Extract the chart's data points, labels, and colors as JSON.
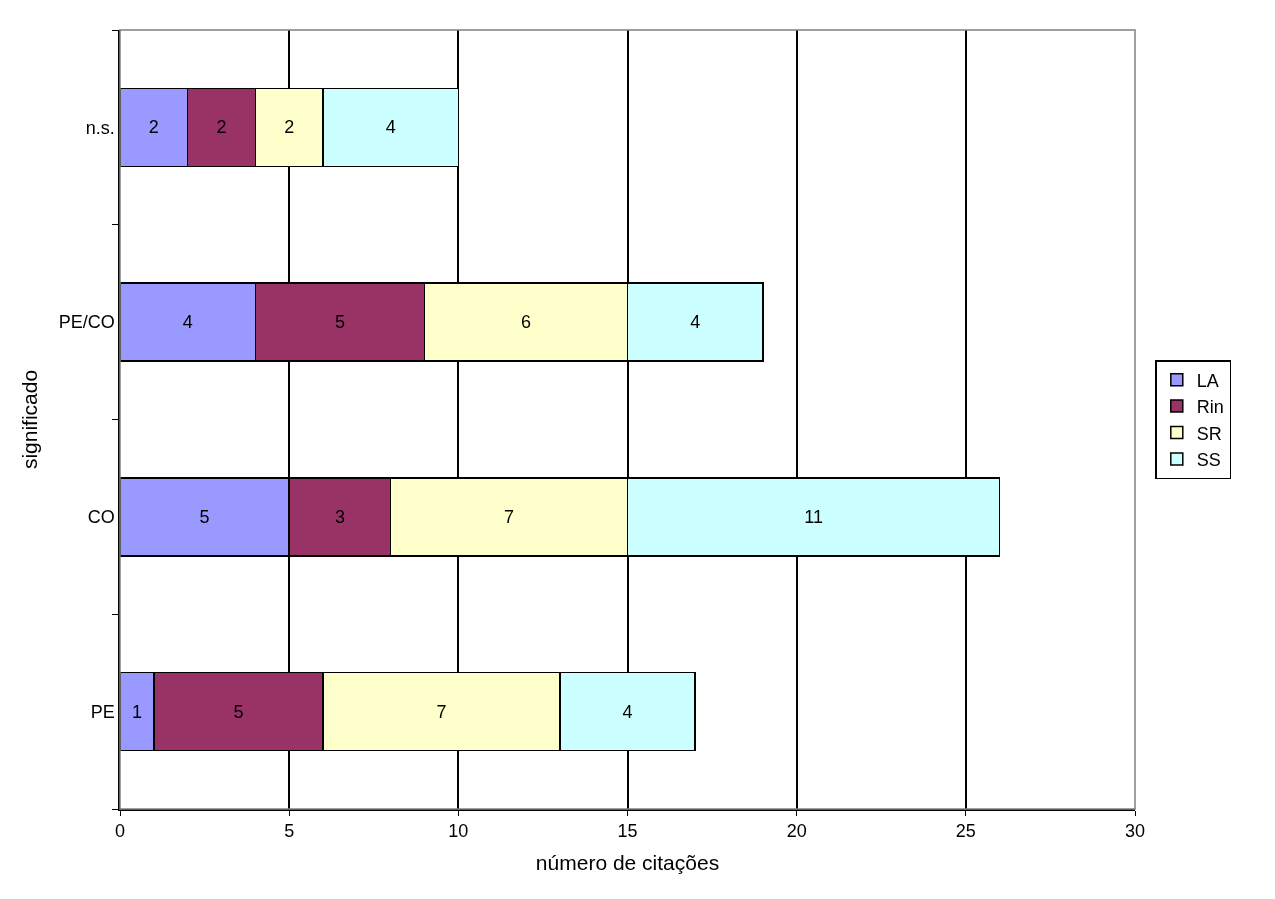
{
  "chart_data": {
    "type": "bar",
    "orientation": "horizontal",
    "stacked": true,
    "xlabel": "número de citações",
    "ylabel": "significado",
    "categories": [
      "n.s.",
      "PE/CO",
      "CO",
      "PE"
    ],
    "series": [
      {
        "name": "LA",
        "color": "#9999ff",
        "values": [
          2,
          4,
          5,
          1
        ]
      },
      {
        "name": "Rin",
        "color": "#993366",
        "values": [
          2,
          5,
          3,
          5
        ]
      },
      {
        "name": "SR",
        "color": "#ffffcc",
        "values": [
          2,
          6,
          7,
          7
        ]
      },
      {
        "name": "SS",
        "color": "#ccffff",
        "values": [
          4,
          4,
          11,
          4
        ]
      }
    ],
    "xlim": [
      0,
      30
    ],
    "xticks": [
      0,
      5,
      10,
      15,
      20,
      25,
      30
    ],
    "grid": "x",
    "legend": "right",
    "data_labels": true
  }
}
